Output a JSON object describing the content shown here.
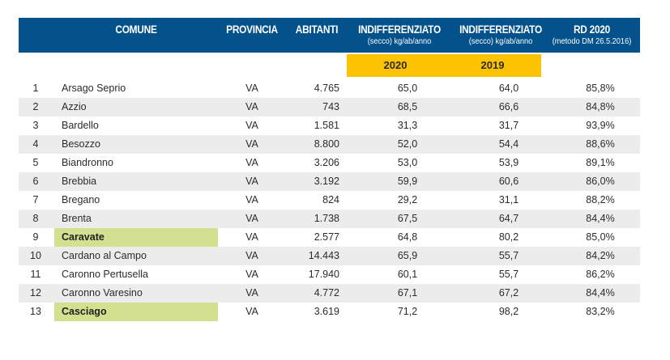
{
  "header": {
    "columns": [
      {
        "title": "COMUNE",
        "sub": ""
      },
      {
        "title": "PROVINCIA",
        "sub": ""
      },
      {
        "title": "ABITANTI",
        "sub": ""
      },
      {
        "title": "INDIFFERENZIATO",
        "sub": "(secco) kg/ab/anno"
      },
      {
        "title": "INDIFFERENZIATO",
        "sub": "(secco) kg/ab/anno"
      },
      {
        "title": "RD 2020",
        "sub": "(metodo DM 26.5.2016)"
      }
    ],
    "years": [
      "2020",
      "2019"
    ]
  },
  "colors": {
    "header_bg": "#04528c",
    "year_band": "#fdc300",
    "alt_row": "#ececec",
    "highlight": "#d3e08f"
  },
  "rows": [
    {
      "n": "1",
      "comune": "Arsago Seprio",
      "prov": "VA",
      "abitanti": "4.765",
      "i2020": "65,0",
      "i2019": "64,0",
      "rd": "85,8%",
      "highlight": false
    },
    {
      "n": "2",
      "comune": "Azzio",
      "prov": "VA",
      "abitanti": "743",
      "i2020": "68,5",
      "i2019": "66,6",
      "rd": "84,8%",
      "highlight": false
    },
    {
      "n": "3",
      "comune": "Bardello",
      "prov": "VA",
      "abitanti": "1.581",
      "i2020": "31,3",
      "i2019": "31,7",
      "rd": "93,9%",
      "highlight": false
    },
    {
      "n": "4",
      "comune": "Besozzo",
      "prov": "VA",
      "abitanti": "8.800",
      "i2020": "52,0",
      "i2019": "54,4",
      "rd": "88,6%",
      "highlight": false
    },
    {
      "n": "5",
      "comune": "Biandronno",
      "prov": "VA",
      "abitanti": "3.206",
      "i2020": "53,0",
      "i2019": "53,9",
      "rd": "89,1%",
      "highlight": false
    },
    {
      "n": "6",
      "comune": "Brebbia",
      "prov": "VA",
      "abitanti": "3.192",
      "i2020": "59,9",
      "i2019": "60,6",
      "rd": "86,0%",
      "highlight": false
    },
    {
      "n": "7",
      "comune": "Bregano",
      "prov": "VA",
      "abitanti": "824",
      "i2020": "29,2",
      "i2019": "31,1",
      "rd": "88,2%",
      "highlight": false
    },
    {
      "n": "8",
      "comune": "Brenta",
      "prov": "VA",
      "abitanti": "1.738",
      "i2020": "67,5",
      "i2019": "64,7",
      "rd": "84,4%",
      "highlight": false
    },
    {
      "n": "9",
      "comune": "Caravate",
      "prov": "VA",
      "abitanti": "2.577",
      "i2020": "64,8",
      "i2019": "80,2",
      "rd": "85,0%",
      "highlight": true
    },
    {
      "n": "10",
      "comune": "Cardano al Campo",
      "prov": "VA",
      "abitanti": "14.443",
      "i2020": "65,9",
      "i2019": "55,7",
      "rd": "84,2%",
      "highlight": false
    },
    {
      "n": "11",
      "comune": "Caronno Pertusella",
      "prov": "VA",
      "abitanti": "17.940",
      "i2020": "60,1",
      "i2019": "55,7",
      "rd": "86,2%",
      "highlight": false
    },
    {
      "n": "12",
      "comune": "Caronno Varesino",
      "prov": "VA",
      "abitanti": "4.772",
      "i2020": "67,1",
      "i2019": "67,2",
      "rd": "84,4%",
      "highlight": false
    },
    {
      "n": "13",
      "comune": "Casciago",
      "prov": "VA",
      "abitanti": "3.619",
      "i2020": "71,2",
      "i2019": "98,2",
      "rd": "83,2%",
      "highlight": true
    }
  ]
}
